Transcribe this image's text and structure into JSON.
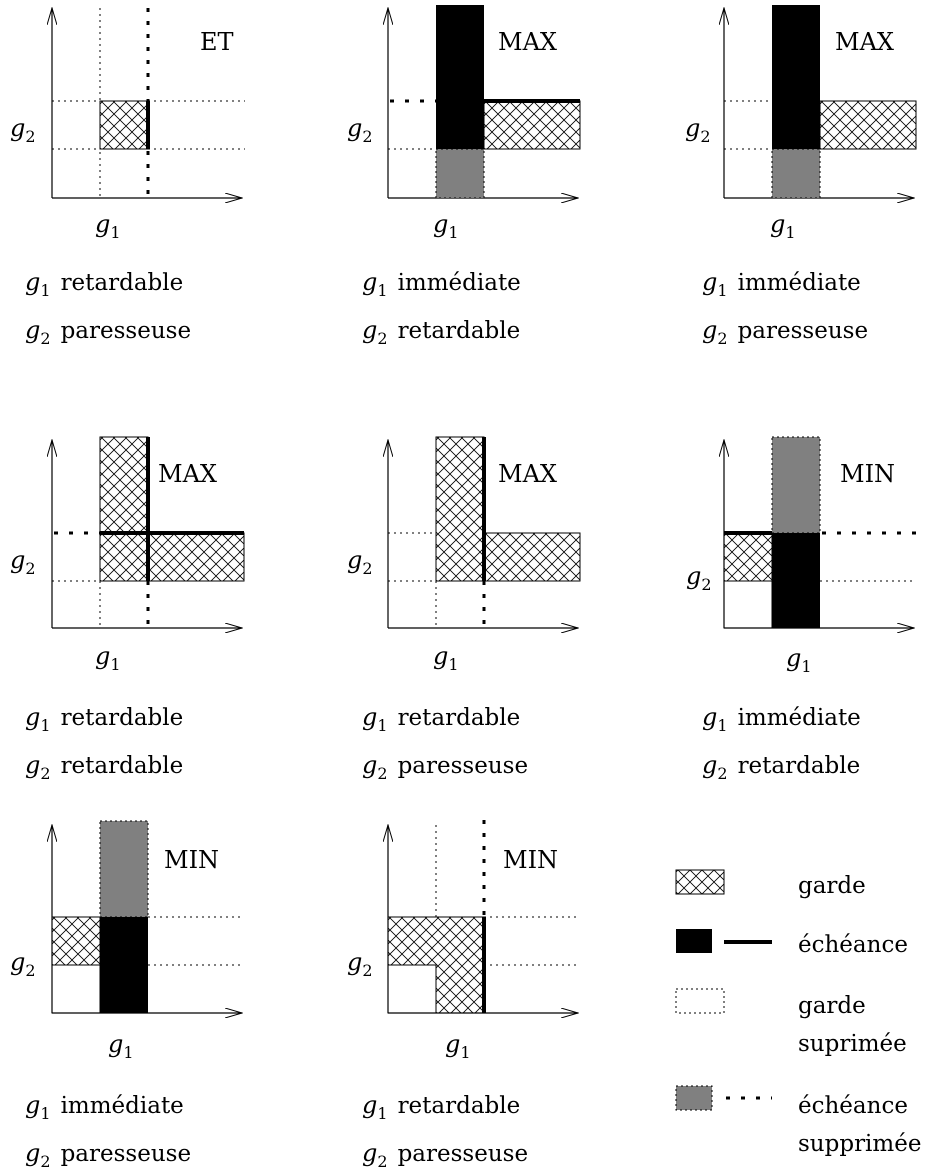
{
  "axis": {
    "x_symbol": "g",
    "x_index": "1",
    "y_symbol": "g",
    "y_index": "2"
  },
  "panels": [
    {
      "operator": "ET",
      "line1": "retardable",
      "line2": "paresseuse"
    },
    {
      "operator": "MAX",
      "line1": "immédiate",
      "line2": "retardable"
    },
    {
      "operator": "MAX",
      "line1": "immédiate",
      "line2": "paresseuse"
    },
    {
      "operator": "MAX",
      "line1": "retardable",
      "line2": "retardable"
    },
    {
      "operator": "MAX",
      "line1": "retardable",
      "line2": "paresseuse"
    },
    {
      "operator": "MIN",
      "line1": "immédiate",
      "line2": "retardable"
    },
    {
      "operator": "MIN",
      "line1": "immédiate",
      "line2": "paresseuse"
    },
    {
      "operator": "MIN",
      "line1": "retardable",
      "line2": "paresseuse"
    }
  ],
  "legend": {
    "guard": "garde",
    "deadline": "échéance",
    "guard_removed_1": "garde",
    "guard_removed_2": "suprimée",
    "deadline_removed_1": "échéance",
    "deadline_removed_2": "supprimée"
  },
  "colors": {
    "ink": "#000000",
    "removed_deadline_fill": "#808080",
    "hatch": "#000000"
  }
}
